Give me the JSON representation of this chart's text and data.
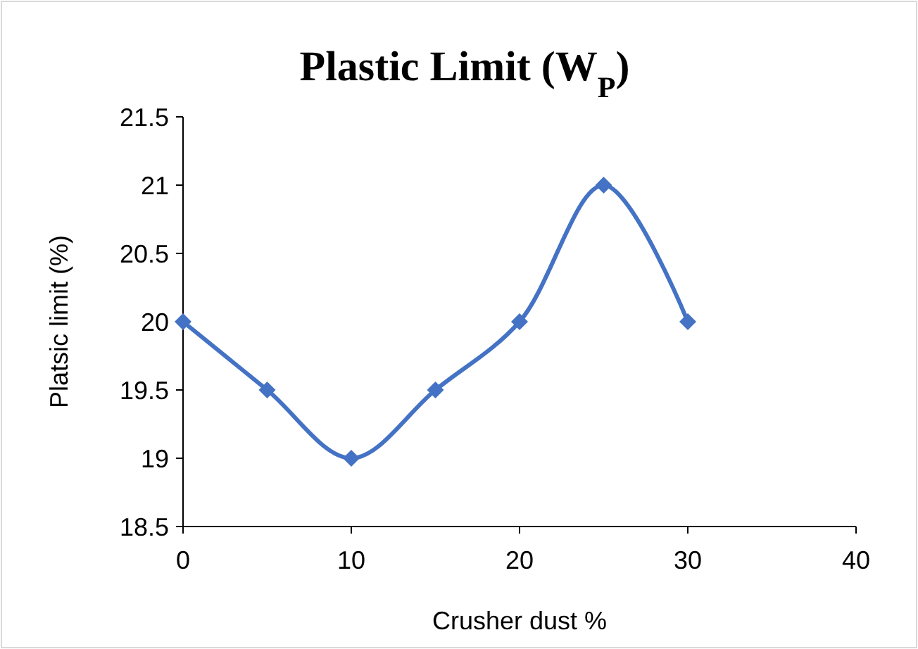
{
  "chart_data": {
    "type": "line",
    "title": "Plastic Limit (W$_{P}$)",
    "xlabel": "Crusher dust %",
    "ylabel": "Platsic limit (%)",
    "x": [
      0,
      5,
      10,
      15,
      20,
      25,
      30
    ],
    "series": [
      {
        "color": "#4472c4",
        "values": [
          20,
          19.5,
          19,
          19.5,
          20,
          21,
          20
        ]
      }
    ],
    "xlim": [
      0,
      40
    ],
    "xticks": [
      0,
      10,
      20,
      30,
      40
    ],
    "ylim": [
      18.5,
      21.5
    ],
    "yticks": [
      18.5,
      19,
      19.5,
      20,
      20.5,
      21,
      21.5
    ],
    "grid": false,
    "marker": "diamond",
    "line_style": "solid"
  }
}
